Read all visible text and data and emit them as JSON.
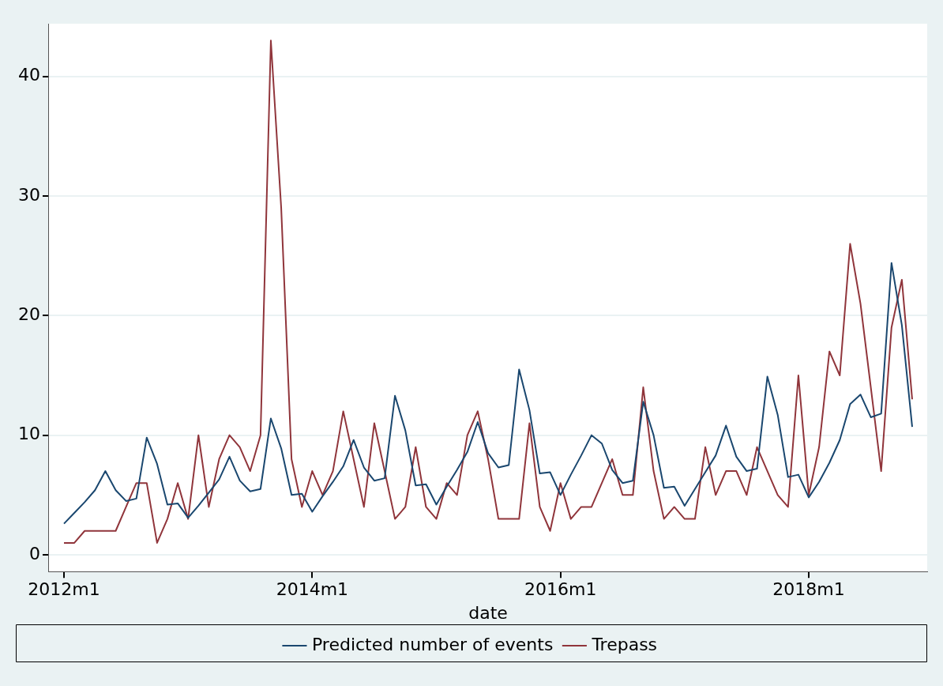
{
  "chart_data": {
    "type": "line",
    "xlabel": "date",
    "x": [
      "2012-01",
      "2012-02",
      "2012-03",
      "2012-04",
      "2012-05",
      "2012-06",
      "2012-07",
      "2012-08",
      "2012-09",
      "2012-10",
      "2012-11",
      "2012-12",
      "2013-01",
      "2013-02",
      "2013-03",
      "2013-04",
      "2013-05",
      "2013-06",
      "2013-07",
      "2013-08",
      "2013-09",
      "2013-10",
      "2013-11",
      "2013-12",
      "2014-01",
      "2014-02",
      "2014-03",
      "2014-04",
      "2014-05",
      "2014-06",
      "2014-07",
      "2014-08",
      "2014-09",
      "2014-10",
      "2014-11",
      "2014-12",
      "2015-01",
      "2015-02",
      "2015-03",
      "2015-04",
      "2015-05",
      "2015-06",
      "2015-07",
      "2015-08",
      "2015-09",
      "2015-10",
      "2015-11",
      "2015-12",
      "2016-01",
      "2016-02",
      "2016-03",
      "2016-04",
      "2016-05",
      "2016-06",
      "2016-07",
      "2016-08",
      "2016-09",
      "2016-10",
      "2016-11",
      "2016-12",
      "2017-01",
      "2017-02",
      "2017-03",
      "2017-04",
      "2017-05",
      "2017-06",
      "2017-07",
      "2017-08",
      "2017-09",
      "2017-10",
      "2017-11",
      "2017-12",
      "2018-01",
      "2018-02",
      "2018-03",
      "2018-04",
      "2018-05",
      "2018-06",
      "2018-07",
      "2018-08",
      "2018-09",
      "2018-10",
      "2018-11"
    ],
    "series": [
      {
        "name": "Predicted number of events",
        "color": "#1a476f",
        "values": [
          2.6,
          3.5,
          4.4,
          5.4,
          7.0,
          5.4,
          4.5,
          4.7,
          9.8,
          7.6,
          4.2,
          4.3,
          3.1,
          4.1,
          5.2,
          6.3,
          8.2,
          6.2,
          5.3,
          5.5,
          11.4,
          8.9,
          5.0,
          5.1,
          3.6,
          4.9,
          6.1,
          7.4,
          9.6,
          7.3,
          6.2,
          6.4,
          13.3,
          10.4,
          5.8,
          5.9,
          4.2,
          5.7,
          7.1,
          8.6,
          11.1,
          8.5,
          7.3,
          7.5,
          15.5,
          12.1,
          6.8,
          6.9,
          5.0,
          6.7,
          8.3,
          10.0,
          9.3,
          7.1,
          6.0,
          6.2,
          12.8,
          10.0,
          5.6,
          5.7,
          4.1,
          5.5,
          6.9,
          8.3,
          10.8,
          8.2,
          7.0,
          7.2,
          14.9,
          11.7,
          6.5,
          6.7,
          4.8,
          6.1,
          7.7,
          9.6,
          12.6,
          13.4,
          11.5,
          11.8,
          24.4,
          19.2,
          10.7
        ]
      },
      {
        "name": "Trepass",
        "color": "#90353b",
        "values": [
          1,
          1,
          2,
          2,
          2,
          2,
          4,
          6,
          6,
          1,
          3,
          6,
          3,
          10,
          4,
          8,
          10,
          9,
          7,
          10,
          43,
          29,
          8,
          4,
          7,
          5,
          7,
          12,
          8,
          4,
          11,
          7,
          3,
          4,
          9,
          4,
          3,
          6,
          5,
          10,
          12,
          8,
          3,
          3,
          3,
          11,
          4,
          2,
          6,
          3,
          4,
          4,
          6,
          8,
          5,
          5,
          14,
          7,
          3,
          4,
          3,
          3,
          9,
          5,
          7,
          7,
          5,
          9,
          7,
          5,
          4,
          15,
          5,
          9,
          17,
          15,
          26,
          21,
          14,
          7,
          19,
          23,
          13
        ]
      }
    ],
    "xlim": [
      "2011-11-18",
      "2018-12-15"
    ],
    "xticks": [
      {
        "value": "2012-01",
        "label": "2012m1"
      },
      {
        "value": "2014-01",
        "label": "2014m1"
      },
      {
        "value": "2016-01",
        "label": "2016m1"
      },
      {
        "value": "2018-01",
        "label": "2018m1"
      }
    ],
    "ylim": [
      -1.4,
      44.4
    ],
    "yticks": [
      0,
      10,
      20,
      30,
      40
    ],
    "grid": "y",
    "legend": "bottom",
    "marker": "none",
    "line_style": "solid"
  }
}
